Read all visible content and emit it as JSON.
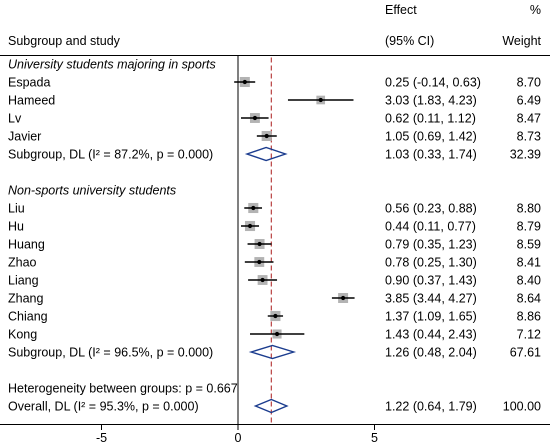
{
  "chart_data": {
    "type": "scatter",
    "columns": {
      "study": "Subgroup and study",
      "effect": [
        "Effect",
        "(95% CI)"
      ],
      "weight": [
        "%",
        "Weight"
      ]
    },
    "subgroups": [
      {
        "title": "University students majoring in sports",
        "studies": [
          {
            "name": "Espada",
            "effect": 0.25,
            "ci": [
              -0.14,
              0.63
            ],
            "weight": 8.7
          },
          {
            "name": "Hameed",
            "effect": 3.03,
            "ci": [
              1.83,
              4.23
            ],
            "weight": 6.49
          },
          {
            "name": "Lv",
            "effect": 0.62,
            "ci": [
              0.11,
              1.12
            ],
            "weight": 8.47
          },
          {
            "name": "Javier",
            "effect": 1.05,
            "ci": [
              0.69,
              1.42
            ],
            "weight": 8.73
          }
        ],
        "summary": {
          "label": "Subgroup, DL (I² = 87.2%, p = 0.000)",
          "effect": 1.03,
          "ci": [
            0.33,
            1.74
          ],
          "weight": 32.39
        }
      },
      {
        "title": "Non-sports university students",
        "studies": [
          {
            "name": "Liu",
            "effect": 0.56,
            "ci": [
              0.23,
              0.88
            ],
            "weight": 8.8
          },
          {
            "name": "Hu",
            "effect": 0.44,
            "ci": [
              0.11,
              0.77
            ],
            "weight": 8.79
          },
          {
            "name": "Huang",
            "effect": 0.79,
            "ci": [
              0.35,
              1.23
            ],
            "weight": 8.59
          },
          {
            "name": "Zhao",
            "effect": 0.78,
            "ci": [
              0.25,
              1.3
            ],
            "weight": 8.41
          },
          {
            "name": "Liang",
            "effect": 0.9,
            "ci": [
              0.37,
              1.43
            ],
            "weight": 8.4
          },
          {
            "name": "Zhang",
            "effect": 3.85,
            "ci": [
              3.44,
              4.27
            ],
            "weight": 8.64
          },
          {
            "name": "Chiang",
            "effect": 1.37,
            "ci": [
              1.09,
              1.65
            ],
            "weight": 8.86
          },
          {
            "name": "Kong",
            "effect": 1.43,
            "ci": [
              0.44,
              2.43
            ],
            "weight": 7.12
          }
        ],
        "summary": {
          "label": "Subgroup, DL (I² = 96.5%, p = 0.000)",
          "effect": 1.26,
          "ci": [
            0.48,
            2.04
          ],
          "weight": 67.61
        }
      }
    ],
    "heterogeneity": "Heterogeneity between groups: p = 0.667",
    "overall": {
      "label": "Overall, DL (I² = 95.3%, p = 0.000)",
      "effect": 1.22,
      "ci": [
        0.64,
        1.79
      ],
      "weight": 100.0
    },
    "xticks": [
      -5,
      0,
      5
    ],
    "xlim": [
      -5,
      5
    ],
    "reference_line": 0,
    "grid": false,
    "colors": {
      "weight_box": "#b3b3b3",
      "point_marker": "#000000",
      "ci_line": "#000000",
      "diamond_outline": "#1b3c8e",
      "overall_effect_line": "#b23030",
      "reference_line": "#000000"
    }
  }
}
